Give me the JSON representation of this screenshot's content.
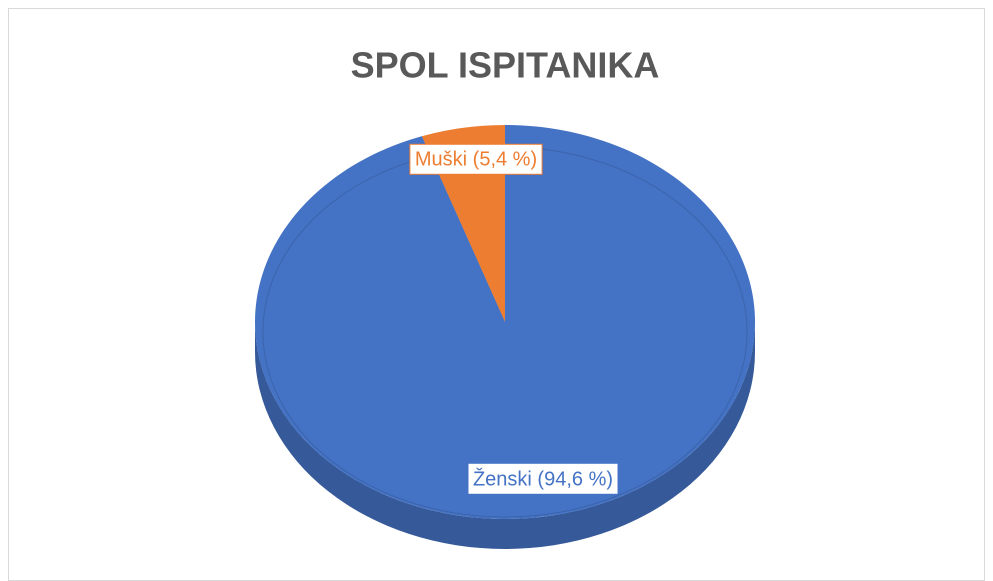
{
  "chart_data": {
    "type": "pie",
    "title": "SPOL ISPITANIKA",
    "values": [
      5.4,
      94.6
    ],
    "value_labels": [
      "Muški (5,4 %)",
      "Ženski (94,6 %)"
    ],
    "colors": [
      "#ed7d31",
      "#4472c4"
    ]
  }
}
